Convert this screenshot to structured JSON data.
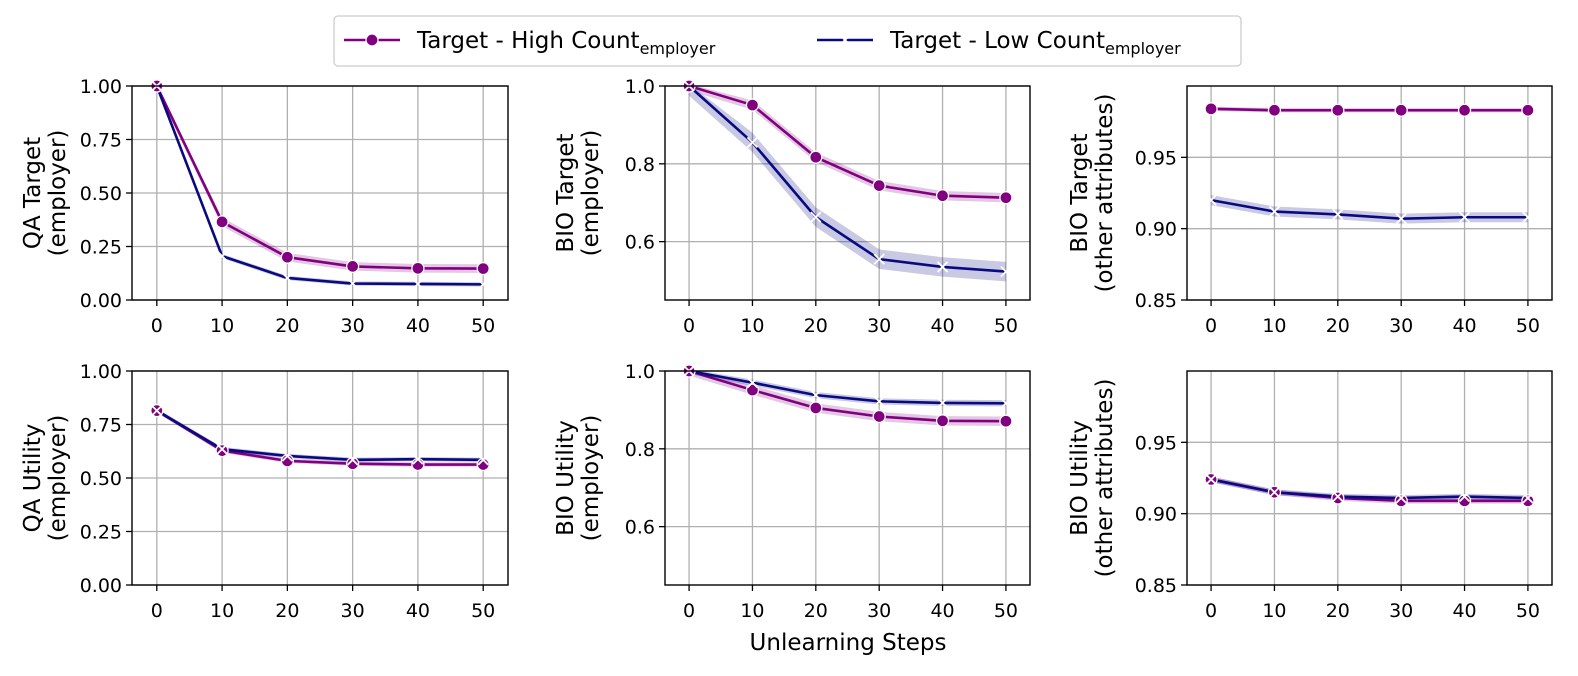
{
  "figure": {
    "xlabel": "Unlearning Steps",
    "legend": {
      "placement": "top-center",
      "items": [
        {
          "prefix": "Target - High Count",
          "sub": "employer",
          "color": "#800080",
          "marker": "circle"
        },
        {
          "prefix": "Target - Low Count",
          "sub": "employer",
          "color": "#0a0a80",
          "marker": "x"
        }
      ]
    }
  },
  "chart_data": [
    {
      "type": "line",
      "ylabel": [
        "QA Target",
        "(employer)"
      ],
      "x": [
        0,
        10,
        20,
        30,
        40,
        50
      ],
      "xticks": [
        "0",
        "10",
        "20",
        "30",
        "40",
        "50"
      ],
      "ylim": [
        0,
        1
      ],
      "yticks": [
        0,
        0.25,
        0.5,
        0.75,
        1
      ],
      "yticklabels": [
        "0.00",
        "0.25",
        "0.50",
        "0.75",
        "1.00"
      ],
      "grid": true,
      "series": [
        {
          "name": "Target - High Count employer",
          "color": "#800080",
          "marker": "circle",
          "values": [
            1.0,
            0.365,
            0.2,
            0.157,
            0.148,
            0.147
          ],
          "band": 0.02
        },
        {
          "name": "Target - Low Count employer",
          "color": "#0a0a80",
          "marker": "x",
          "values": [
            1.0,
            0.205,
            0.103,
            0.077,
            0.075,
            0.073
          ],
          "band": 0.01
        }
      ]
    },
    {
      "type": "line",
      "ylabel": [
        "BIO Target",
        "(employer)"
      ],
      "x": [
        0,
        10,
        20,
        30,
        40,
        50
      ],
      "xticks": [
        "0",
        "10",
        "20",
        "30",
        "40",
        "50"
      ],
      "ylim": [
        0.45,
        1.0
      ],
      "yticks": [
        0.6,
        0.8,
        1.0
      ],
      "yticklabels": [
        "0.6",
        "0.8",
        "1.0"
      ],
      "grid": true,
      "series": [
        {
          "name": "Target - High Count employer",
          "color": "#800080",
          "marker": "circle",
          "values": [
            1.0,
            0.951,
            0.817,
            0.744,
            0.718,
            0.713
          ],
          "band": 0.012
        },
        {
          "name": "Target - Low Count employer",
          "color": "#0a0a80",
          "marker": "x",
          "values": [
            1.0,
            0.855,
            0.663,
            0.555,
            0.535,
            0.523
          ],
          "band": 0.025
        }
      ]
    },
    {
      "type": "line",
      "ylabel": [
        "BIO Target",
        "(other attributes)"
      ],
      "x": [
        0,
        10,
        20,
        30,
        40,
        50
      ],
      "xticks": [
        "0",
        "10",
        "20",
        "30",
        "40",
        "50"
      ],
      "ylim": [
        0.85,
        1.0
      ],
      "yticks": [
        0.85,
        0.9,
        0.95
      ],
      "yticklabels": [
        "0.85",
        "0.90",
        "0.95"
      ],
      "grid": true,
      "series": [
        {
          "name": "Target - High Count employer",
          "color": "#800080",
          "marker": "circle",
          "values": [
            0.984,
            0.983,
            0.983,
            0.983,
            0.983,
            0.983
          ],
          "band": 0.0015
        },
        {
          "name": "Target - Low Count employer",
          "color": "#0a0a80",
          "marker": "x",
          "values": [
            0.92,
            0.912,
            0.91,
            0.907,
            0.908,
            0.908
          ],
          "band": 0.0035
        }
      ]
    },
    {
      "type": "line",
      "ylabel": [
        "QA Utility",
        "(employer)"
      ],
      "x": [
        0,
        10,
        20,
        30,
        40,
        50
      ],
      "xticks": [
        "0",
        "10",
        "20",
        "30",
        "40",
        "50"
      ],
      "ylim": [
        0,
        1
      ],
      "yticks": [
        0,
        0.25,
        0.5,
        0.75,
        1
      ],
      "yticklabels": [
        "0.00",
        "0.25",
        "0.50",
        "0.75",
        "1.00"
      ],
      "grid": true,
      "series": [
        {
          "name": "Target - High Count employer",
          "color": "#800080",
          "marker": "circle",
          "values": [
            0.815,
            0.628,
            0.58,
            0.567,
            0.563,
            0.563
          ],
          "band": 0.01
        },
        {
          "name": "Target - Low Count employer",
          "color": "#0a0a80",
          "marker": "x",
          "values": [
            0.815,
            0.635,
            0.603,
            0.585,
            0.588,
            0.585
          ],
          "band": 0.01
        }
      ]
    },
    {
      "type": "line",
      "ylabel": [
        "BIO Utility",
        "(employer)"
      ],
      "x": [
        0,
        10,
        20,
        30,
        40,
        50
      ],
      "xticks": [
        "0",
        "10",
        "20",
        "30",
        "40",
        "50"
      ],
      "ylim": [
        0.45,
        1.0
      ],
      "yticks": [
        0.6,
        0.8,
        1.0
      ],
      "yticklabels": [
        "0.6",
        "0.8",
        "1.0"
      ],
      "grid": true,
      "series": [
        {
          "name": "Target - High Count employer",
          "color": "#800080",
          "marker": "circle",
          "values": [
            1.0,
            0.951,
            0.905,
            0.883,
            0.872,
            0.871
          ],
          "band": 0.012
        },
        {
          "name": "Target - Low Count employer",
          "color": "#0a0a80",
          "marker": "x",
          "values": [
            1.0,
            0.97,
            0.938,
            0.922,
            0.918,
            0.917
          ],
          "band": 0.008
        }
      ]
    },
    {
      "type": "line",
      "ylabel": [
        "BIO Utility",
        "(other attributes)"
      ],
      "x": [
        0,
        10,
        20,
        30,
        40,
        50
      ],
      "xticks": [
        "0",
        "10",
        "20",
        "30",
        "40",
        "50"
      ],
      "ylim": [
        0.85,
        1.0
      ],
      "yticks": [
        0.85,
        0.9,
        0.95
      ],
      "yticklabels": [
        "0.85",
        "0.90",
        "0.95"
      ],
      "grid": true,
      "series": [
        {
          "name": "Target - High Count employer",
          "color": "#800080",
          "marker": "circle",
          "values": [
            0.924,
            0.915,
            0.911,
            0.909,
            0.909,
            0.909
          ],
          "band": 0.002
        },
        {
          "name": "Target - Low Count employer",
          "color": "#0a0a80",
          "marker": "x",
          "values": [
            0.924,
            0.915,
            0.912,
            0.911,
            0.912,
            0.911
          ],
          "band": 0.002
        }
      ]
    }
  ]
}
